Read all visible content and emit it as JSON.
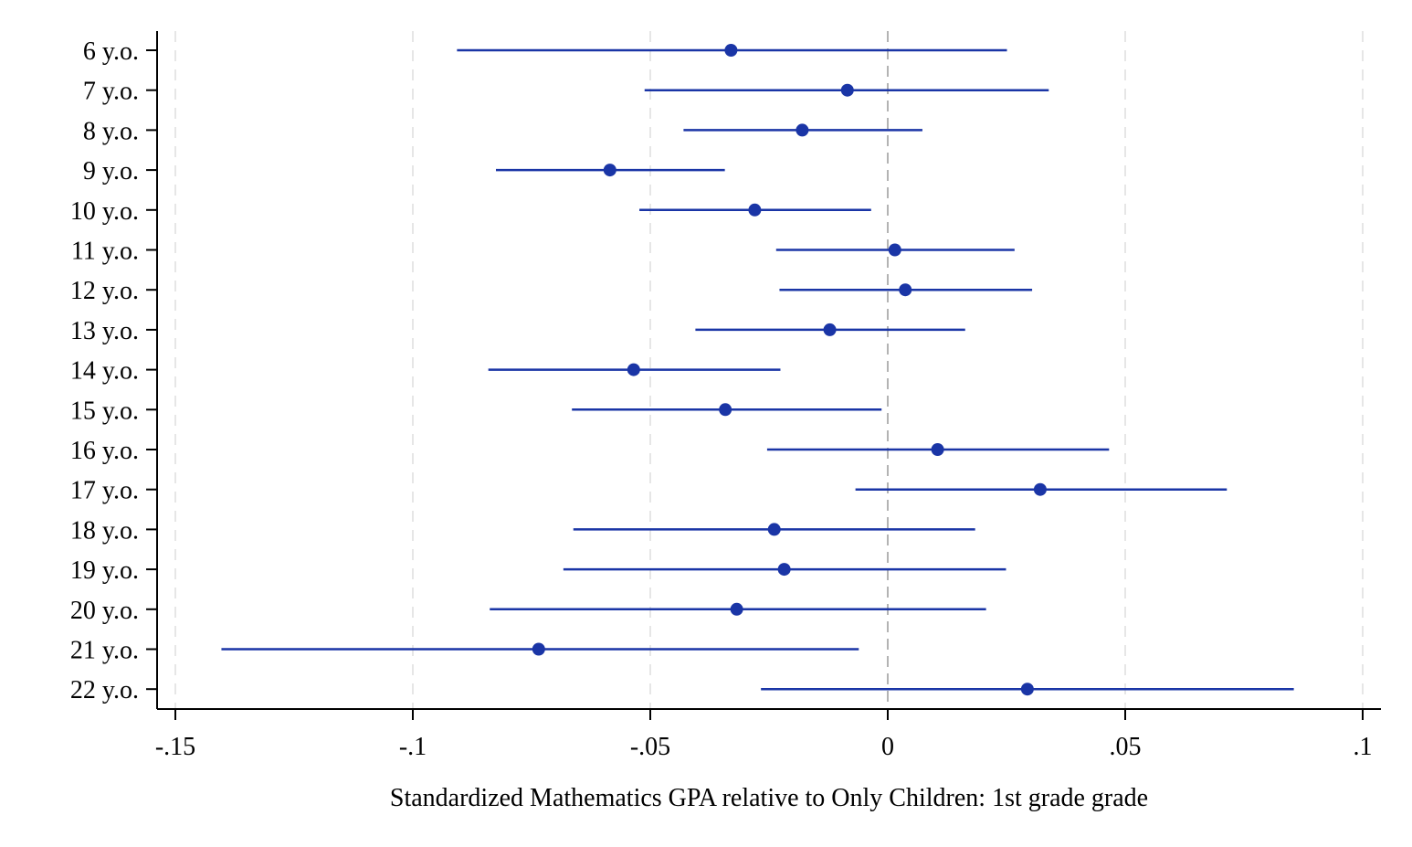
{
  "chart_data": {
    "type": "scatter",
    "subtype": "coefficient-plot-horizontal-ci",
    "title": "",
    "xlabel": "Standardized Mathematics GPA relative to Only Children: 1st grade grade",
    "ylabel": "",
    "xlim": [
      -0.155,
      0.104
    ],
    "xticks": [
      {
        "value": -0.15,
        "label": "-.15"
      },
      {
        "value": -0.1,
        "label": "-.1"
      },
      {
        "value": -0.05,
        "label": "-.05"
      },
      {
        "value": 0,
        "label": "0"
      },
      {
        "value": 0.05,
        "label": ".05"
      },
      {
        "value": 0.1,
        "label": ".1"
      }
    ],
    "grid": "vertical dashed at x ticks",
    "reference_line": 0,
    "legend": "none",
    "marker_color": "#1a35a6",
    "categories": [
      "6 y.o.",
      "7 y.o.",
      "8 y.o.",
      "9 y.o.",
      "10 y.o.",
      "11 y.o.",
      "12 y.o.",
      "13 y.o.",
      "14 y.o.",
      "15 y.o.",
      "16 y.o.",
      "17 y.o.",
      "18 y.o.",
      "19 y.o.",
      "20 y.o.",
      "21 y.o.",
      "22 y.o."
    ],
    "estimates": [
      -0.033,
      -0.0085,
      -0.018,
      -0.0585,
      -0.028,
      0.0015,
      0.0037,
      -0.0122,
      -0.0535,
      -0.0342,
      0.0105,
      0.0321,
      -0.0239,
      -0.0218,
      -0.0318,
      -0.0735,
      0.0294
    ],
    "ci_low": [
      -0.0907,
      -0.0512,
      -0.043,
      -0.0825,
      -0.0523,
      -0.0235,
      -0.0228,
      -0.0405,
      -0.0841,
      -0.0665,
      -0.0254,
      -0.0068,
      -0.0662,
      -0.0683,
      -0.0838,
      -0.1403,
      -0.0267
    ],
    "ci_high": [
      0.0251,
      0.0339,
      0.0073,
      -0.0343,
      -0.0035,
      0.0267,
      0.0304,
      0.0163,
      -0.0226,
      -0.0013,
      0.0466,
      0.0714,
      0.0184,
      0.0249,
      0.0207,
      -0.0061,
      0.0855
    ]
  }
}
